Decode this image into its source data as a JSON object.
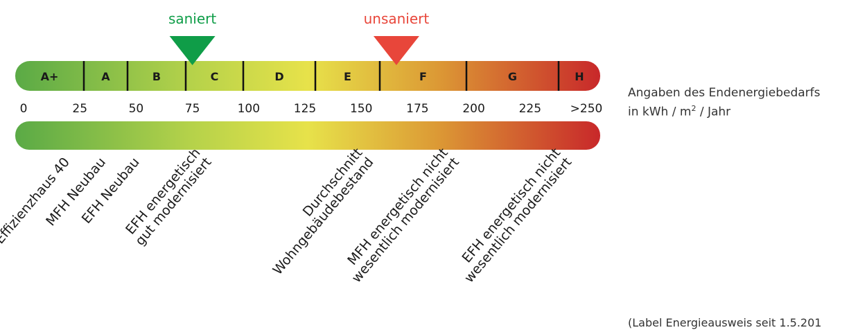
{
  "scale": {
    "min": 0,
    "max": 250,
    "grades": [
      {
        "label": "A+",
        "from": 0,
        "to": 25
      },
      {
        "label": "A",
        "from": 25,
        "to": 50
      },
      {
        "label": "B",
        "from": 50,
        "to": 75
      },
      {
        "label": "C",
        "from": 75,
        "to": 100
      },
      {
        "label": "D",
        "from": 100,
        "to": 130
      },
      {
        "label": "E",
        "from": 130,
        "to": 160
      },
      {
        "label": "F",
        "from": 160,
        "to": 200
      },
      {
        "label": "G",
        "from": 200,
        "to": 250
      },
      {
        "label": "H",
        "from": 250,
        "to": 270
      }
    ],
    "ticks": [
      {
        "value": 0,
        "label": "0"
      },
      {
        "value": 25,
        "label": "25"
      },
      {
        "value": 50,
        "label": "50"
      },
      {
        "value": 75,
        "label": "75"
      },
      {
        "value": 100,
        "label": "100"
      },
      {
        "value": 125,
        "label": "125"
      },
      {
        "value": 150,
        "label": "150"
      },
      {
        "value": 175,
        "label": "175"
      },
      {
        "value": 200,
        "label": "200"
      },
      {
        "value": 225,
        "label": "225"
      },
      {
        "value": 250,
        "label": ">250"
      }
    ],
    "colors": {
      "green": "#5aaa46",
      "lightgreen": "#b5d24a",
      "yellow": "#e7e24a",
      "orange": "#dc9a35",
      "red": "#c8282a"
    }
  },
  "markers": [
    {
      "label": "saniert",
      "value": 75,
      "color": "#0f9d48"
    },
    {
      "label": "unsaniert",
      "value": 165,
      "color": "#e8463a"
    }
  ],
  "categories": [
    {
      "lines": [
        "Effizienzhaus 40"
      ],
      "value": 17
    },
    {
      "lines": [
        "MFH Neubau"
      ],
      "value": 33
    },
    {
      "lines": [
        "EFH Neubau"
      ],
      "value": 48
    },
    {
      "lines": [
        "EFH energetisch",
        "gut modernisiert"
      ],
      "value": 80
    },
    {
      "lines": [
        "Durchschnitt",
        "Wohngebäudebestand"
      ],
      "value": 152
    },
    {
      "lines": [
        "MFH energetisch nicht",
        "wesentlich modernisiert"
      ],
      "value": 190
    },
    {
      "lines": [
        "EFH energetisch nicht",
        "wesentlich modernisiert"
      ],
      "value": 240
    }
  ],
  "unit": {
    "line1": "Angaben des Endenergiebedarfs",
    "line2_prefix": "in kWh / m",
    "line2_sup": "2",
    "line2_suffix": " / Jahr"
  },
  "footnote": "(Label Energieausweis seit 1.5.201"
}
